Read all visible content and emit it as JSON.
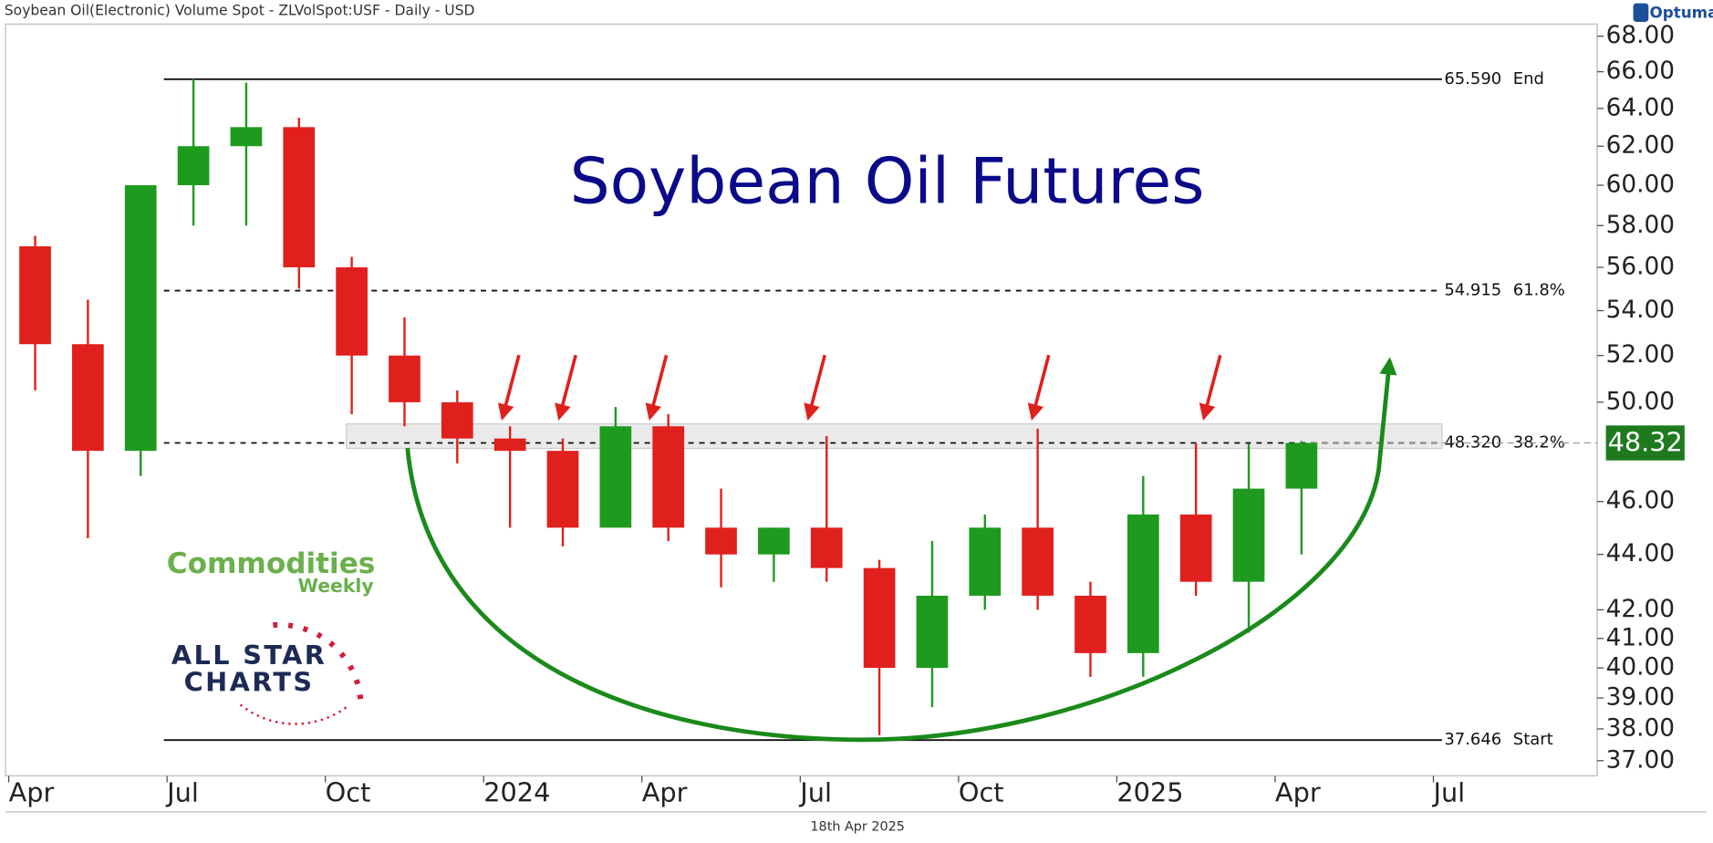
{
  "chart_data": {
    "type": "candlestick",
    "title": "Soybean Oil(Electronic) Volume Spot - ZLVolSpot:USF - Daily - USD",
    "source": "Optuma",
    "annotation": "Soybean Oil Futures",
    "date_label": "18th Apr 2025",
    "x": [
      "2023-04",
      "2023-05",
      "2023-06",
      "2023-07",
      "2023-08",
      "2023-09",
      "2023-10",
      "2023-11",
      "2023-12",
      "2024-01",
      "2024-02",
      "2024-03",
      "2024-04",
      "2024-05",
      "2024-06",
      "2024-07",
      "2024-08",
      "2024-09",
      "2024-10",
      "2024-11",
      "2024-12",
      "2025-01",
      "2025-02",
      "2025-03",
      "2025-04"
    ],
    "open": [
      57,
      52.5,
      48,
      60,
      62,
      63,
      56,
      52,
      50,
      48.5,
      48,
      45,
      49,
      45,
      44,
      45,
      43.5,
      40,
      42.5,
      45,
      42.5,
      40.5,
      45.5,
      43,
      46.5
    ],
    "high": [
      57.5,
      54.5,
      60,
      65.6,
      65.4,
      63.5,
      56.5,
      53.7,
      50.5,
      49,
      48.5,
      49.8,
      49.5,
      46.5,
      45,
      48.6,
      43.8,
      44.5,
      45.5,
      48.9,
      43,
      47,
      48.3,
      48.3,
      48.4
    ],
    "low": [
      50.5,
      44.6,
      47,
      58,
      58,
      55,
      49.5,
      49,
      47.5,
      45,
      44.3,
      45,
      44.5,
      42.8,
      43,
      43,
      37.8,
      38.7,
      42,
      42,
      39.7,
      39.7,
      42.5,
      41.2,
      44
    ],
    "close": [
      52.5,
      48,
      60,
      62,
      63,
      56,
      52,
      50,
      48.5,
      48,
      45,
      49,
      45,
      44,
      45,
      43.5,
      40,
      42.5,
      45,
      42.5,
      40.5,
      45.5,
      43,
      46.5,
      48.32
    ],
    "up_color": "#1e9a1e",
    "down_color": "#e0201c",
    "log_scale": true,
    "ylim": [
      36.6,
      68.7
    ],
    "yticks": [
      {
        "value": 68,
        "label": "68.00"
      },
      {
        "value": 66,
        "label": "66.00"
      },
      {
        "value": 64,
        "label": "64.00"
      },
      {
        "value": 62,
        "label": "62.00"
      },
      {
        "value": 60,
        "label": "60.00"
      },
      {
        "value": 58,
        "label": "58.00"
      },
      {
        "value": 56,
        "label": "56.00"
      },
      {
        "value": 54,
        "label": "54.00"
      },
      {
        "value": 52,
        "label": "52.00"
      },
      {
        "value": 50,
        "label": "50.00"
      },
      {
        "value": 46,
        "label": "46.00"
      },
      {
        "value": 44,
        "label": "44.00"
      },
      {
        "value": 42,
        "label": "42.00"
      },
      {
        "value": 41,
        "label": "41.00"
      },
      {
        "value": 40,
        "label": "40.00"
      },
      {
        "value": 39,
        "label": "39.00"
      },
      {
        "value": 38,
        "label": "38.00"
      },
      {
        "value": 37,
        "label": "37.00"
      }
    ],
    "xlim": [
      "2023-04",
      "2025-10"
    ],
    "xticks": [
      {
        "value": "2023-04",
        "label": "Apr"
      },
      {
        "value": "2023-07",
        "label": "Jul"
      },
      {
        "value": "2023-10",
        "label": "Oct"
      },
      {
        "value": "2024-01",
        "label": "2024"
      },
      {
        "value": "2024-04",
        "label": "Apr"
      },
      {
        "value": "2024-07",
        "label": "Jul"
      },
      {
        "value": "2024-10",
        "label": "Oct"
      },
      {
        "value": "2025-01",
        "label": "2025"
      },
      {
        "value": "2025-04",
        "label": "Apr"
      },
      {
        "value": "2025-07",
        "label": "Jul"
      }
    ],
    "levels": [
      {
        "value": 65.59,
        "label": "65.590",
        "name": "End",
        "style": "solid"
      },
      {
        "value": 54.915,
        "label": "54.915",
        "name": "61.8%",
        "style": "dashed"
      },
      {
        "value": 48.32,
        "label": "48.320",
        "name": "38.2%",
        "style": "dashed"
      },
      {
        "value": 37.646,
        "label": "37.646",
        "name": "Start",
        "style": "solid"
      }
    ],
    "zone": [
      48.1,
      49.1
    ],
    "last_price": 48.32,
    "logos": {
      "commodities": "Commodities",
      "weekly": "Weekly",
      "allstar": "ALL STAR",
      "charts": "CHARTS"
    }
  }
}
